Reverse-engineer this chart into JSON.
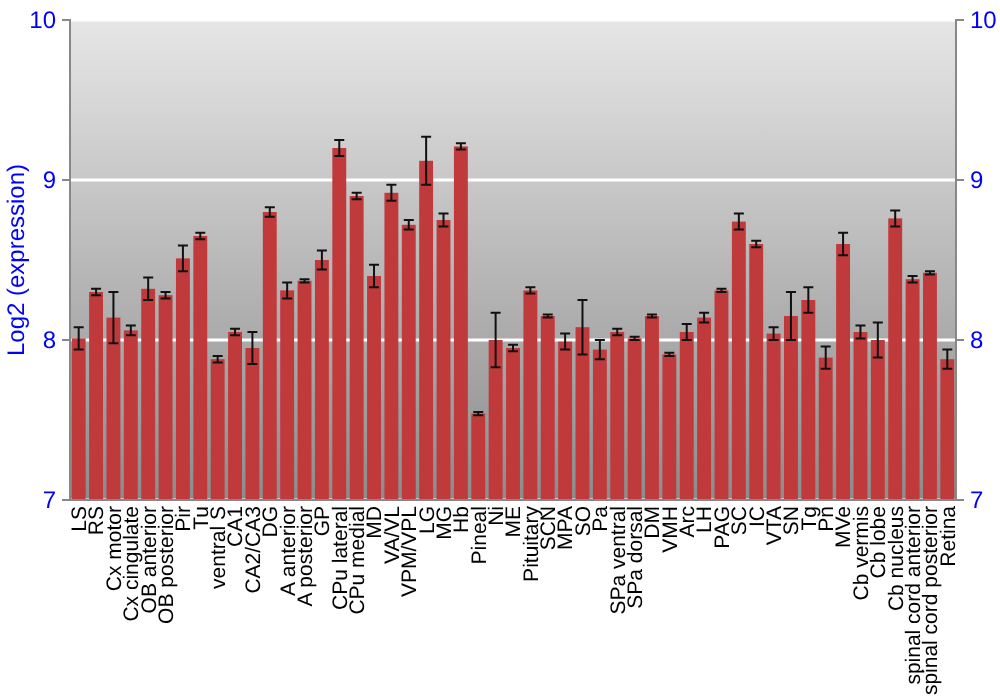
{
  "chart_data": {
    "type": "bar",
    "ylabel": "Log2 (expression)",
    "categories": [
      "LS",
      "RS",
      "Cx motor",
      "Cx cingulate",
      "OB anterior",
      "OB posterior",
      "Pir",
      "Tu",
      "ventral S",
      "CA1",
      "CA2/CA3",
      "DG",
      "A anterior",
      "A posterior",
      "GP",
      "CPu lateral",
      "CPu medial",
      "MD",
      "VA/VL",
      "VPM/VPL",
      "LG",
      "MG",
      "Hb",
      "Pineal",
      "Ni",
      "ME",
      "Pituitary",
      "SCN",
      "MPA",
      "SO",
      "Pa",
      "SPa ventral",
      "SPa dorsal",
      "DM",
      "VMH",
      "Arc",
      "LH",
      "PAG",
      "SC",
      "IC",
      "VTA",
      "SN",
      "Tg",
      "Pn",
      "MVe",
      "Cb vermis",
      "Cb lobe",
      "Cb nucleus",
      "spinal cord anterior",
      "spinal cord posterior",
      "Retina"
    ],
    "values": [
      8.01,
      8.3,
      8.14,
      8.06,
      8.32,
      8.28,
      8.51,
      8.65,
      7.88,
      8.05,
      7.95,
      8.8,
      8.31,
      8.37,
      8.5,
      9.2,
      8.9,
      8.4,
      8.92,
      8.72,
      9.12,
      8.75,
      9.21,
      7.54,
      8.0,
      7.95,
      8.31,
      8.15,
      7.99,
      8.08,
      7.94,
      8.05,
      8.01,
      8.15,
      7.91,
      8.05,
      8.14,
      8.31,
      8.74,
      8.6,
      8.04,
      8.15,
      8.25,
      7.89,
      8.6,
      8.05,
      8.0,
      8.76,
      8.38,
      8.42,
      7.88
    ],
    "errors": [
      0.07,
      0.02,
      0.16,
      0.03,
      0.07,
      0.02,
      0.08,
      0.02,
      0.02,
      0.02,
      0.1,
      0.03,
      0.05,
      0.01,
      0.06,
      0.05,
      0.02,
      0.07,
      0.05,
      0.03,
      0.15,
      0.04,
      0.02,
      0.01,
      0.17,
      0.02,
      0.02,
      0.01,
      0.05,
      0.17,
      0.06,
      0.02,
      0.01,
      0.01,
      0.01,
      0.05,
      0.03,
      0.01,
      0.05,
      0.02,
      0.04,
      0.15,
      0.08,
      0.07,
      0.07,
      0.04,
      0.11,
      0.05,
      0.02,
      0.01,
      0.06
    ],
    "color": "#c0393b",
    "ylim": [
      7,
      10
    ],
    "yticks": [
      7,
      8,
      9,
      10
    ],
    "y2lim": [
      7,
      10
    ],
    "y2ticks": [
      7,
      8,
      9,
      10
    ],
    "grid": "y"
  }
}
